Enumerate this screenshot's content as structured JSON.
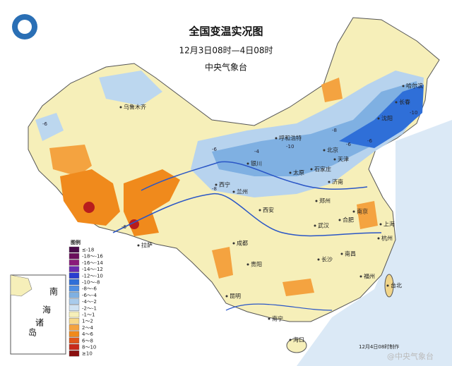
{
  "header": {
    "title": "全国变温实况图",
    "time_range": "12月3日08时—4日08时",
    "issuer": "中央气象台"
  },
  "legend": {
    "title": "图例",
    "items": [
      {
        "label": "≤-18",
        "color": "#4a0a4a"
      },
      {
        "label": "-18～-16",
        "color": "#6b0e5c"
      },
      {
        "label": "-16～-14",
        "color": "#8a1a7a"
      },
      {
        "label": "-14～-12",
        "color": "#6a2bb0"
      },
      {
        "label": "-12～-10",
        "color": "#2a3ed0"
      },
      {
        "label": "-10～-8",
        "color": "#2f6fd8"
      },
      {
        "label": "-8～-6",
        "color": "#4f8fe4"
      },
      {
        "label": "-6～-4",
        "color": "#7fb0e2"
      },
      {
        "label": "-4～-2",
        "color": "#a9cbeb"
      },
      {
        "label": "-2～-1",
        "color": "#cfe2f3"
      },
      {
        "label": "-1～1",
        "color": "#f6efb9"
      },
      {
        "label": "1～2",
        "color": "#f7d98a"
      },
      {
        "label": "2～4",
        "color": "#f4a340"
      },
      {
        "label": "4～6",
        "color": "#f08a1c"
      },
      {
        "label": "6～8",
        "color": "#e0551a"
      },
      {
        "label": "8～10",
        "color": "#c82a1a"
      },
      {
        "label": "≥10",
        "color": "#8a0f0f"
      }
    ]
  },
  "cities": [
    "乌鲁木齐",
    "拉萨",
    "西宁",
    "兰州",
    "银川",
    "呼和浩特",
    "太原",
    "石家庄",
    "北京",
    "天津",
    "济南",
    "郑州",
    "西安",
    "成都",
    "贵阳",
    "昆明",
    "南宁",
    "海口",
    "长沙",
    "武汉",
    "合肥",
    "南京",
    "上海",
    "杭州",
    "南昌",
    "福州",
    "台北",
    "沈阳",
    "长春",
    "哈尔滨"
  ],
  "station_values": [
    "-6",
    "-6",
    "-8",
    "-6",
    "-10",
    "-8",
    "-6",
    "-6",
    "-10",
    "-4"
  ],
  "inset": {
    "labels": [
      "南",
      "海",
      "诸",
      "岛"
    ]
  },
  "footer": "12月4日08时制作",
  "watermark": "@中央气象台"
}
